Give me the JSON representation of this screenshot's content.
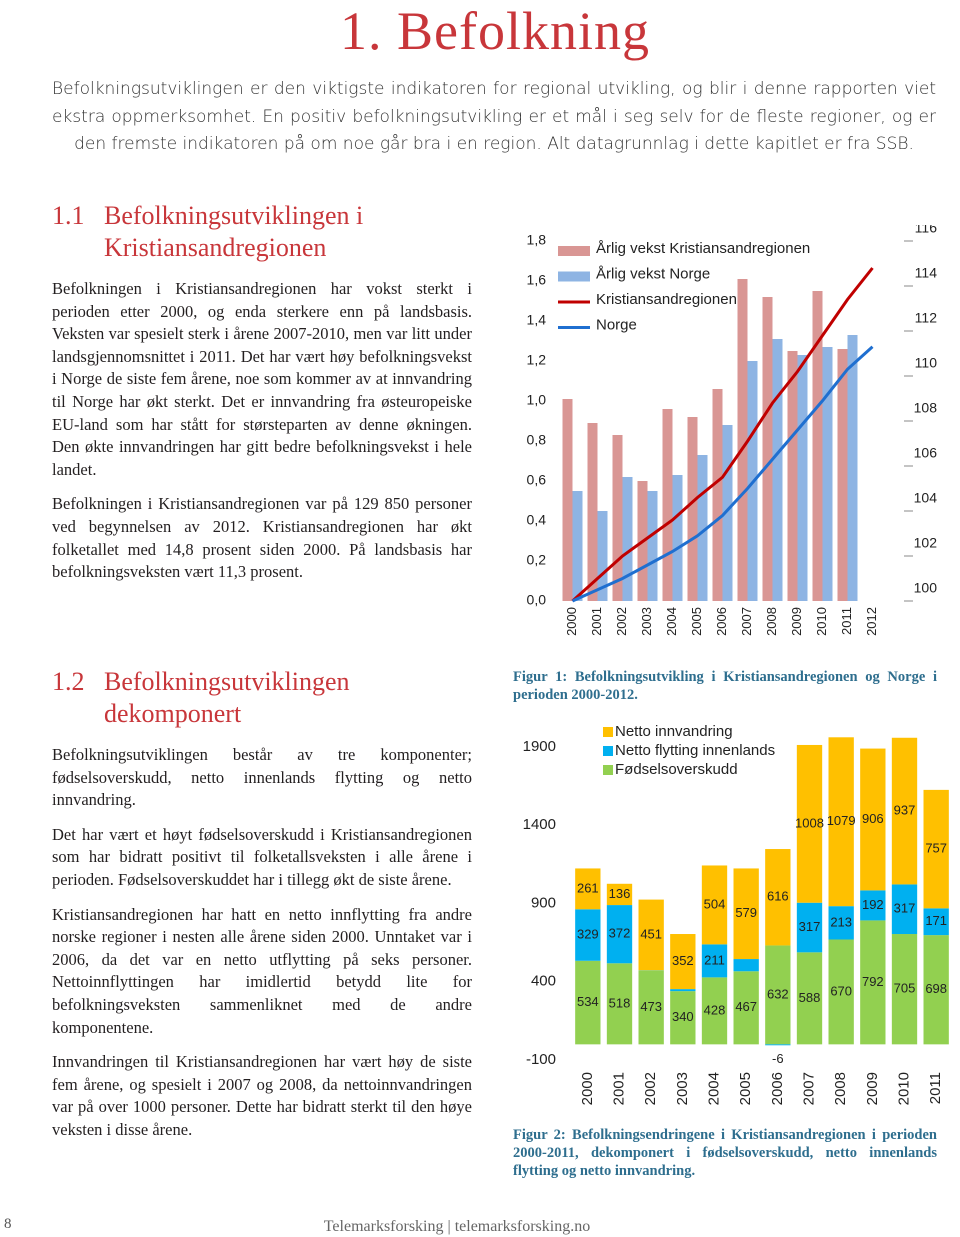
{
  "document": {
    "title": "1. Befolkning",
    "intro": "Befolkningsutviklingen er den viktigste indikatoren for regional utvikling, og blir i denne rapporten viet ekstra oppmerksomhet. En positiv befolkningsutvikling er et mål i seg selv for de fleste regioner, og er den fremste indikatoren på om noe går bra i en region. Alt datagrunnlag i dette kapitlet er fra SSB.",
    "sections": [
      {
        "number": "1.1",
        "heading": "Befolkningsutviklingen i Kristiansandregionen",
        "paragraphs": [
          "Befolkningen i Kristiansandregionen har vokst sterkt i perioden etter 2000, og enda sterkere enn på landsbasis. Veksten var spesielt sterk i årene 2007-2010, men var litt under landsgjennomsnittet i 2011. Det har vært høy befolkningsvekst i Norge de siste fem årene, noe som kommer av at innvandring til Norge har økt sterkt. Det er innvandring fra østeuropeiske EU-land som har stått for størsteparten av denne økningen. Den økte innvandringen har gitt bedre befolkningsvekst i hele landet.",
          "Befolkningen i Kristiansandregionen var på 129 850 personer ved begynnelsen av 2012. Kristiansandregionen har økt folketallet med 14,8 prosent siden 2000. På landsbasis har befolkningsveksten vært 11,3 prosent."
        ]
      },
      {
        "number": "1.2",
        "heading": "Befolkningsutviklingen dekomponert",
        "paragraphs": [
          "Befolkningsutviklingen består av tre komponenter; fødselsoverskudd, netto innenlands flytting og netto innvandring.",
          "Det har vært et høyt fødselsoverskudd i Kristiansandregionen som har bidratt positivt til folketallsveksten i alle årene i perioden. Fødselsoverskuddet har i tillegg økt de siste årene.",
          "Kristiansandregionen har hatt en netto innflytting fra andre norske regioner i nesten alle årene siden 2000. Unntaket var i 2006, da det var en netto utflytting på seks personer. Nettoinnflyttingen har imidlertid betydd lite for befolkningsveksten sammenliknet med de andre komponentene.",
          "Innvandringen til Kristiansandregionen har vært høy de siste fem årene, og spesielt i 2007 og 2008, da nettoinnvandringen var på over 1000 personer. Dette har bidratt sterkt til den høye veksten i disse årene."
        ]
      }
    ],
    "captions": [
      "Figur 1: Befolkningsutvikling i Kristiansandregionen og Norge i perioden 2000-2012.",
      "Figur 2: Befolkningsendringene i Kristiansandregionen i perioden 2000-2011, dekomponert i fødselsoverskudd, netto innenlands flytting og netto innvandring."
    ],
    "page_number": "8",
    "footer": "Telemarksforsking | telemarksforsking.no"
  },
  "chart_data": [
    {
      "type": "combo",
      "legend": "upper left",
      "categories": [
        "2000",
        "2001",
        "2002",
        "2003",
        "2004",
        "2005",
        "2006",
        "2007",
        "2008",
        "2009",
        "2010",
        "2011",
        "2012"
      ],
      "ylim": [
        0,
        1.8
      ],
      "yticks": [
        {
          "value": 0,
          "label": "0,0"
        },
        {
          "value": 0.2,
          "label": "0,2"
        },
        {
          "value": 0.4,
          "label": "0,4"
        },
        {
          "value": 0.6,
          "label": "0,6"
        },
        {
          "value": 0.8,
          "label": "0,8"
        },
        {
          "value": 1.0,
          "label": "1,0"
        },
        {
          "value": 1.2,
          "label": "1,2"
        },
        {
          "value": 1.4,
          "label": "1,4"
        },
        {
          "value": 1.6,
          "label": "1,6"
        },
        {
          "value": 1.8,
          "label": "1,8"
        }
      ],
      "y2lim": [
        100,
        116
      ],
      "y2ticks": [
        100,
        102,
        104,
        106,
        108,
        110,
        112,
        114,
        116
      ],
      "series": [
        {
          "name": "Årlig vekst Kristiansandregionen",
          "type": "bar",
          "color": "#d99694",
          "values": [
            1.01,
            0.89,
            0.83,
            0.6,
            0.96,
            0.92,
            1.06,
            1.61,
            1.52,
            1.25,
            1.55,
            1.26,
            null
          ]
        },
        {
          "name": "Årlig vekst Norge",
          "type": "bar",
          "color": "#8eb4e3",
          "values": [
            0.55,
            0.45,
            0.62,
            0.55,
            0.63,
            0.73,
            0.88,
            1.2,
            1.31,
            1.23,
            1.27,
            1.33,
            null
          ]
        },
        {
          "name": "Kristiansandregionen",
          "type": "line",
          "axis": "y2",
          "color": "#c00000",
          "values": [
            100,
            101.0,
            102.0,
            102.8,
            103.6,
            104.6,
            105.5,
            107.1,
            108.8,
            110.2,
            111.8,
            113.4,
            114.8
          ]
        },
        {
          "name": "Norge",
          "type": "line",
          "axis": "y2",
          "color": "#1f6fd0",
          "values": [
            100,
            100.5,
            101.0,
            101.6,
            102.2,
            102.9,
            103.8,
            105.0,
            106.3,
            107.6,
            108.9,
            110.3,
            111.3
          ]
        }
      ]
    },
    {
      "type": "bar",
      "stacked": true,
      "legend": "upper left",
      "categories": [
        "2000",
        "2001",
        "2002",
        "2003",
        "2004",
        "2005",
        "2006",
        "2007",
        "2008",
        "2009",
        "2010",
        "2011"
      ],
      "ylim": [
        -100,
        1900
      ],
      "yticks": [
        -100,
        400,
        900,
        1400,
        1900
      ],
      "series": [
        {
          "name": "Fødselsoverskudd",
          "color": "#92d050",
          "values": [
            534,
            518,
            473,
            340,
            428,
            467,
            632,
            588,
            670,
            792,
            705,
            698
          ]
        },
        {
          "name": "Netto flytting innenlands",
          "color": "#00b0f0",
          "values": [
            329,
            372,
            1,
            13,
            211,
            78,
            -6,
            317,
            213,
            192,
            317,
            171
          ]
        },
        {
          "name": "Netto innvandring",
          "color": "#ffc000",
          "values": [
            261,
            136,
            451,
            352,
            504,
            579,
            616,
            1008,
            1079,
            906,
            937,
            757
          ]
        }
      ]
    }
  ]
}
